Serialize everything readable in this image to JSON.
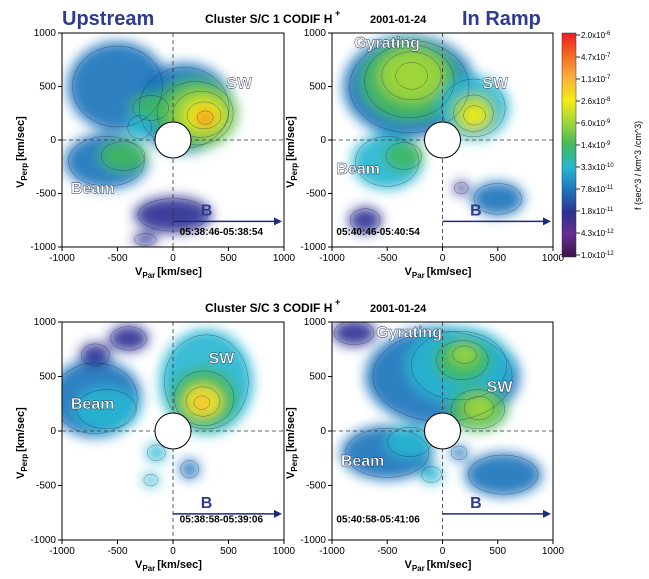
{
  "figure": {
    "top_title": "Cluster S/C 1 CODIF H",
    "bottom_title": "Cluster S/C 3 CODIF H",
    "title_sup": "+",
    "date": "2001-01-24",
    "upstream_label": "Upstream",
    "ramp_label": "In Ramp",
    "b_label": "B",
    "xlabel_main": "V",
    "xlabel_sub": "Par",
    "xlabel_unit": "[km/sec]",
    "ylabel_main": "V",
    "ylabel_sub": "Perp",
    "ylabel_unit": "[km/sec]",
    "colorbar_label": "f (sec^3 / km^3 /cm^3)"
  },
  "chart_data": [
    {
      "type": "heatmap",
      "panel": "S/C 1 upstream",
      "time_range": "05:38:46-05:38:54",
      "xlim": [
        -1000,
        1000
      ],
      "ylim": [
        -1000,
        1000
      ],
      "x_ticks": [
        -1000,
        -500,
        0,
        500,
        1000
      ],
      "y_ticks": [
        -1000,
        -500,
        0,
        500,
        1000
      ],
      "annotations": [
        "SW",
        "Beam",
        "B"
      ],
      "features": [
        {
          "label": "SW",
          "center": [
            280,
            230
          ],
          "level": 0.82
        },
        {
          "label": "Beam",
          "center": [
            -480,
            -220
          ],
          "level": 0.45
        }
      ]
    },
    {
      "type": "heatmap",
      "panel": "S/C 1 in ramp",
      "time_range": "05:40:46-05:40:54",
      "xlim": [
        -1000,
        1000
      ],
      "ylim": [
        -1000,
        1000
      ],
      "x_ticks": [
        -1000,
        -500,
        0,
        500,
        1000
      ],
      "y_ticks": [
        -1000,
        -500,
        0,
        500,
        1000
      ],
      "annotations": [
        "Gyrating",
        "SW",
        "Beam",
        "B"
      ],
      "features": [
        {
          "label": "Gyrating",
          "center": [
            -280,
            580
          ],
          "level": 0.68
        },
        {
          "label": "SW",
          "center": [
            280,
            250
          ],
          "level": 0.72
        },
        {
          "label": "Beam",
          "center": [
            -400,
            -150
          ],
          "level": 0.4
        }
      ]
    },
    {
      "type": "heatmap",
      "panel": "S/C 3 upstream",
      "time_range": "05:38:58-05:39:06",
      "xlim": [
        -1000,
        1000
      ],
      "ylim": [
        -1000,
        1000
      ],
      "x_ticks": [
        -1000,
        -500,
        0,
        500,
        1000
      ],
      "y_ticks": [
        -1000,
        -500,
        0,
        500,
        1000
      ],
      "annotations": [
        "SW",
        "Beam",
        "B"
      ],
      "features": [
        {
          "label": "SW",
          "center": [
            270,
            260
          ],
          "level": 0.88
        },
        {
          "label": "Beam",
          "center": [
            -600,
            250
          ],
          "level": 0.4
        }
      ]
    },
    {
      "type": "heatmap",
      "panel": "S/C 3 in ramp",
      "time_range": "05:40:58-05:41:06",
      "xlim": [
        -1000,
        1000
      ],
      "ylim": [
        -1000,
        1000
      ],
      "x_ticks": [
        -1000,
        -500,
        0,
        500,
        1000
      ],
      "y_ticks": [
        -1000,
        -500,
        0,
        500,
        1000
      ],
      "annotations": [
        "Gyrating",
        "SW",
        "Beam",
        "B"
      ],
      "features": [
        {
          "label": "Gyrating",
          "center": [
            200,
            650
          ],
          "level": 0.7
        },
        {
          "label": "SW",
          "center": [
            330,
            220
          ],
          "level": 0.65
        },
        {
          "label": "Beam",
          "center": [
            -350,
            -80
          ],
          "level": 0.38
        }
      ]
    }
  ],
  "colorbar": {
    "ticks": [
      "2.0x10",
      "4.7x10",
      "1.1x10",
      "2.6x10",
      "6.0x10",
      "1.4x10",
      "3.3x10",
      "7.8x10",
      "1.8x10",
      "4.3x10",
      "1.0x10"
    ],
    "exponents": [
      "-6",
      "-7",
      "-7",
      "-8",
      "-9",
      "-9",
      "-10",
      "-11",
      "-11",
      "-12",
      "-12"
    ],
    "colors": [
      "#ee1c24",
      "#f36b21",
      "#fbb040",
      "#f6eb14",
      "#9fd63a",
      "#3fb95c",
      "#29b6d1",
      "#1c75bc",
      "#2e3192",
      "#662d91",
      "#3b1248"
    ]
  }
}
